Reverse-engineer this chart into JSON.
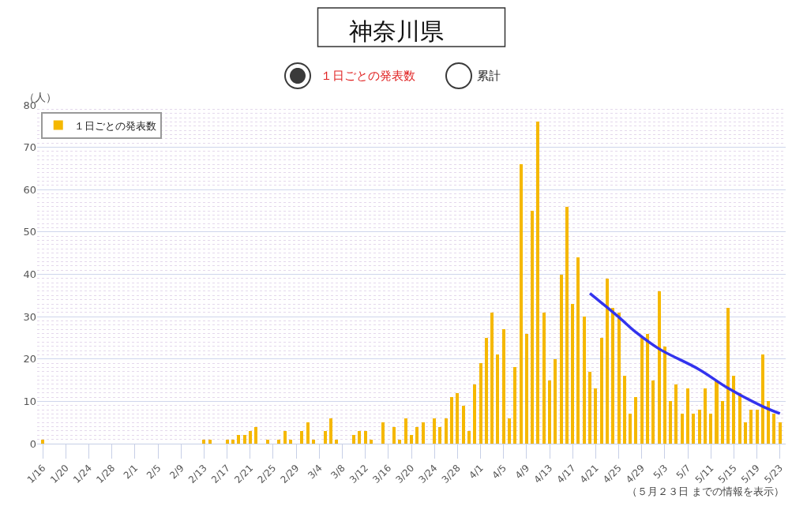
{
  "chart_data": {
    "type": "bar",
    "title": "神奈川県",
    "ylabel": "（人）",
    "annotations": [
      "１日ごとの発表数",
      "累計",
      "（５月２３日 までの情報を表示）"
    ],
    "x": [
      "--01-16",
      "--01-17",
      "--01-18",
      "--01-19",
      "--01-20",
      "--01-21",
      "--01-22",
      "--01-23",
      "--01-24",
      "--01-25",
      "--01-26",
      "--01-27",
      "--01-28",
      "--01-29",
      "--01-30",
      "--01-31",
      "--02-01",
      "--02-02",
      "--02-03",
      "--02-04",
      "--02-05",
      "--02-06",
      "--02-07",
      "--02-08",
      "--02-09",
      "--02-10",
      "--02-11",
      "--02-12",
      "--02-13",
      "--02-14",
      "--02-15",
      "--02-16",
      "--02-17",
      "--02-18",
      "--02-19",
      "--02-20",
      "--02-21",
      "--02-22",
      "--02-23",
      "--02-24",
      "--02-25",
      "--02-26",
      "--02-27",
      "--02-28",
      "--02-29",
      "--03-01",
      "--03-02",
      "--03-03",
      "--03-04",
      "--03-05",
      "--03-06",
      "--03-07",
      "--03-08",
      "--03-09",
      "--03-10",
      "--03-11",
      "--03-12",
      "--03-13",
      "--03-14",
      "--03-15",
      "--03-16",
      "--03-17",
      "--03-18",
      "--03-19",
      "--03-20",
      "--03-21",
      "--03-22",
      "--03-23",
      "--03-24",
      "--03-25",
      "--03-26",
      "--03-27",
      "--03-28",
      "--03-29",
      "--03-30",
      "--03-31",
      "--04-01",
      "--04-02",
      "--04-03",
      "--04-04",
      "--04-05",
      "--04-06",
      "--04-07",
      "--04-08",
      "--04-09",
      "--04-10",
      "--04-11",
      "--04-12",
      "--04-13",
      "--04-14",
      "--04-15",
      "--04-16",
      "--04-17",
      "--04-18",
      "--04-19",
      "--04-20",
      "--04-21",
      "--04-22",
      "--04-23",
      "--04-24",
      "--04-25",
      "--04-26",
      "--04-27",
      "--04-28",
      "--04-29",
      "--04-30",
      "--05-01",
      "--05-02",
      "--05-03",
      "--05-04",
      "--05-05",
      "--05-06",
      "--05-07",
      "--05-08",
      "--05-09",
      "--05-10",
      "--05-11",
      "--05-12",
      "--05-13",
      "--05-14",
      "--05-15",
      "--05-16",
      "--05-17",
      "--05-18",
      "--05-19",
      "--05-20",
      "--05-21",
      "--05-22",
      "--05-23"
    ],
    "series": [
      {
        "name": "１日ごとの発表数",
        "color": "#f5b800",
        "values": [
          1,
          0,
          0,
          0,
          0,
          0,
          0,
          0,
          0,
          0,
          0,
          0,
          0,
          0,
          0,
          0,
          0,
          0,
          0,
          0,
          0,
          0,
          0,
          0,
          0,
          0,
          0,
          0,
          1,
          1,
          0,
          0,
          1,
          1,
          2,
          2,
          3,
          4,
          0,
          1,
          0,
          1,
          3,
          1,
          0,
          3,
          5,
          1,
          0,
          3,
          6,
          1,
          0,
          0,
          2,
          3,
          3,
          1,
          0,
          5,
          0,
          4,
          1,
          6,
          2,
          4,
          5,
          0,
          6,
          4,
          6,
          11,
          12,
          9,
          3,
          14,
          19,
          25,
          31,
          21,
          27,
          6,
          18,
          66,
          26,
          55,
          76,
          31,
          15,
          20,
          40,
          56,
          33,
          44,
          30,
          17,
          13,
          25,
          39,
          32,
          31,
          16,
          7,
          11,
          25,
          26,
          15,
          36,
          23,
          10,
          14,
          7,
          13,
          7,
          8,
          13,
          7,
          15,
          10,
          32,
          16,
          12,
          5,
          8,
          8,
          21,
          10,
          7,
          5
        ]
      },
      {
        "type": "line",
        "color": "#3333ee",
        "x": [
          "--04-20",
          "--04-25",
          "--04-28",
          "--05-02",
          "--05-09",
          "--05-14",
          "--05-20",
          "--05-23"
        ],
        "values": [
          35.5,
          29.9,
          26.3,
          22.4,
          17.5,
          13.1,
          8.8,
          7.1
        ]
      }
    ],
    "ylim": [
      0,
      80
    ],
    "yticks": [
      0,
      10,
      20,
      30,
      40,
      50,
      60,
      70,
      80
    ],
    "xlim": [
      "--01-15",
      "--05-24"
    ],
    "xticks": [
      {
        "value": "--01-16",
        "label": "1/16"
      },
      {
        "value": "--01-20",
        "label": "1/20"
      },
      {
        "value": "--01-24",
        "label": "1/24"
      },
      {
        "value": "--01-28",
        "label": "1/28"
      },
      {
        "value": "--02-01",
        "label": "2/1"
      },
      {
        "value": "--02-05",
        "label": "2/5"
      },
      {
        "value": "--02-09",
        "label": "2/9"
      },
      {
        "value": "--02-13",
        "label": "2/13"
      },
      {
        "value": "--02-17",
        "label": "2/17"
      },
      {
        "value": "--02-21",
        "label": "2/21"
      },
      {
        "value": "--02-25",
        "label": "2/25"
      },
      {
        "value": "--02-29",
        "label": "2/29"
      },
      {
        "value": "--03-04",
        "label": "3/4"
      },
      {
        "value": "--03-08",
        "label": "3/8"
      },
      {
        "value": "--03-12",
        "label": "3/12"
      },
      {
        "value": "--03-16",
        "label": "3/16"
      },
      {
        "value": "--03-20",
        "label": "3/20"
      },
      {
        "value": "--03-24",
        "label": "3/24"
      },
      {
        "value": "--03-28",
        "label": "3/28"
      },
      {
        "value": "--04-01",
        "label": "4/1"
      },
      {
        "value": "--04-05",
        "label": "4/5"
      },
      {
        "value": "--04-09",
        "label": "4/9"
      },
      {
        "value": "--04-13",
        "label": "4/13"
      },
      {
        "value": "--04-17",
        "label": "4/17"
      },
      {
        "value": "--04-21",
        "label": "4/21"
      },
      {
        "value": "--04-25",
        "label": "4/25"
      },
      {
        "value": "--04-29",
        "label": "4/29"
      },
      {
        "value": "--05-03",
        "label": "5/3"
      },
      {
        "value": "--05-07",
        "label": "5/7"
      },
      {
        "value": "--05-11",
        "label": "5/11"
      },
      {
        "value": "--05-15",
        "label": "5/15"
      },
      {
        "value": "--05-19",
        "label": "5/19"
      },
      {
        "value": "--05-23",
        "label": "5/23"
      }
    ],
    "grid": "y",
    "legend": "top left"
  }
}
